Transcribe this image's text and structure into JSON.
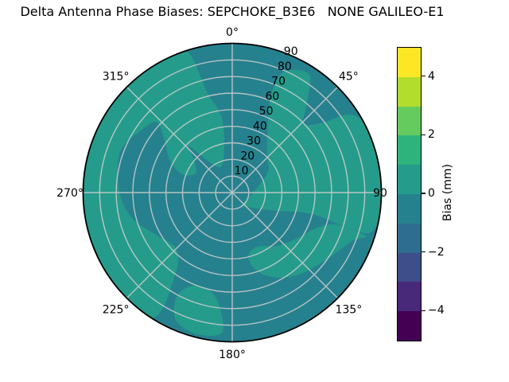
{
  "title": "Delta Antenna Phase Biases: SEPCHOKE_B3E6   NONE GALILEO-E1",
  "chart_data": {
    "type": "heatmap",
    "subtype": "polar-filled-contour",
    "title": "Delta Antenna Phase Biases: SEPCHOKE_B3E6   NONE GALILEO-E1",
    "theta_direction": "clockwise",
    "theta_zero_location": "top",
    "theta_ticks": [
      {
        "text": "0°",
        "theta": 0,
        "radius": 202
      },
      {
        "text": "45°",
        "theta": 45,
        "radius": 207
      },
      {
        "text": "90",
        "theta": 90,
        "radius": 186
      },
      {
        "text": "135°",
        "theta": 135,
        "radius": 207
      },
      {
        "text": "180°",
        "theta": 180,
        "radius": 203
      },
      {
        "text": "225°",
        "theta": 225,
        "radius": 207
      },
      {
        "text": "270°",
        "theta": 270,
        "radius": 204
      },
      {
        "text": "315°",
        "theta": 315,
        "radius": 207
      }
    ],
    "r_ticks": [
      10,
      20,
      30,
      40,
      50,
      60,
      70,
      80,
      90
    ],
    "r_max": 90,
    "grid_on": true,
    "grid_color": "#cfcfcf",
    "outline_color": "#000000",
    "fill": {
      "base_color": "#26818E",
      "base_bias_bin": [
        -1,
        0
      ],
      "patch_color": "#259C8B",
      "patch_bias_bin": [
        0,
        1
      ]
    },
    "patches_theta_r": {
      "east": [
        [
          22,
          62
        ],
        [
          23,
          79
        ],
        [
          33,
          85
        ],
        [
          40,
          70
        ],
        [
          46,
          60
        ],
        [
          52,
          68
        ],
        [
          56,
          84
        ],
        [
          62,
          90
        ],
        [
          75,
          93
        ],
        [
          90,
          93
        ],
        [
          105,
          88
        ],
        [
          107,
          75
        ],
        [
          105,
          50
        ],
        [
          115,
          25
        ],
        [
          135,
          12
        ],
        [
          150,
          10
        ],
        [
          110,
          10
        ],
        [
          80,
          15
        ],
        [
          60,
          25
        ],
        [
          45,
          30
        ],
        [
          32,
          40
        ]
      ],
      "southeast": [
        [
          108,
          85
        ],
        [
          112,
          78
        ],
        [
          125,
          70
        ],
        [
          140,
          64
        ],
        [
          152,
          58
        ],
        [
          162,
          50
        ],
        [
          166,
          40
        ],
        [
          155,
          36
        ],
        [
          140,
          42
        ],
        [
          125,
          48
        ],
        [
          113,
          55
        ],
        [
          107,
          66
        ]
      ],
      "south": [
        [
          184,
          84
        ],
        [
          194,
          88
        ],
        [
          204,
          84
        ],
        [
          208,
          70
        ],
        [
          201,
          60
        ],
        [
          189,
          64
        ]
      ],
      "west": [
        [
          213,
          90
        ],
        [
          240,
          93
        ],
        [
          270,
          93
        ],
        [
          300,
          93
        ],
        [
          330,
          92
        ],
        [
          342,
          90
        ],
        [
          346,
          62
        ],
        [
          352,
          46
        ],
        [
          349,
          26
        ],
        [
          337,
          17
        ],
        [
          324,
          22
        ],
        [
          317,
          38
        ],
        [
          310,
          30
        ],
        [
          298,
          25
        ],
        [
          290,
          32
        ],
        [
          297,
          42
        ],
        [
          308,
          52
        ],
        [
          313,
          62
        ],
        [
          306,
          66
        ],
        [
          290,
          72
        ],
        [
          270,
          68
        ],
        [
          255,
          62
        ],
        [
          240,
          52
        ],
        [
          225,
          48
        ],
        [
          215,
          60
        ]
      ]
    },
    "colorbar": {
      "label": "Bias (mm)",
      "vmin": -5,
      "vmax": 5,
      "n_segments": 10,
      "tick_values": [
        4,
        2,
        0,
        -2,
        -4
      ],
      "tick_labels": [
        "4",
        "2",
        "0",
        "−2",
        "−4"
      ],
      "segment_colors_top_to_bottom": [
        "#FDE725",
        "#B2DD2D",
        "#65CB5E",
        "#2EB37C",
        "#259C8B",
        "#26818E",
        "#2E6D8E",
        "#3D4E8A",
        "#482878",
        "#440154"
      ]
    }
  }
}
